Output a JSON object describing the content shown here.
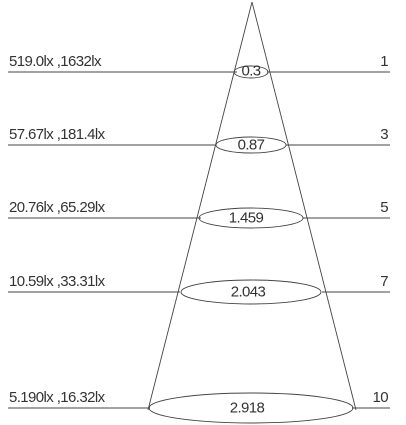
{
  "rows": [
    {
      "illuminance": "519.0lx ,1632lx",
      "diameter": "0.3",
      "distance": "1"
    },
    {
      "illuminance": "57.67lx ,181.4lx",
      "diameter": "0.87",
      "distance": "3"
    },
    {
      "illuminance": "20.76lx ,65.29lx",
      "diameter": "1.459",
      "distance": "5"
    },
    {
      "illuminance": "10.59lx ,33.31lx",
      "diameter": "2.043",
      "distance": "7"
    },
    {
      "illuminance": "5.190lx ,16.32lx",
      "diameter": "2.918",
      "distance": "10"
    }
  ],
  "colors": {
    "line": "#444444",
    "text": "#333333",
    "background": "#ffffff"
  }
}
